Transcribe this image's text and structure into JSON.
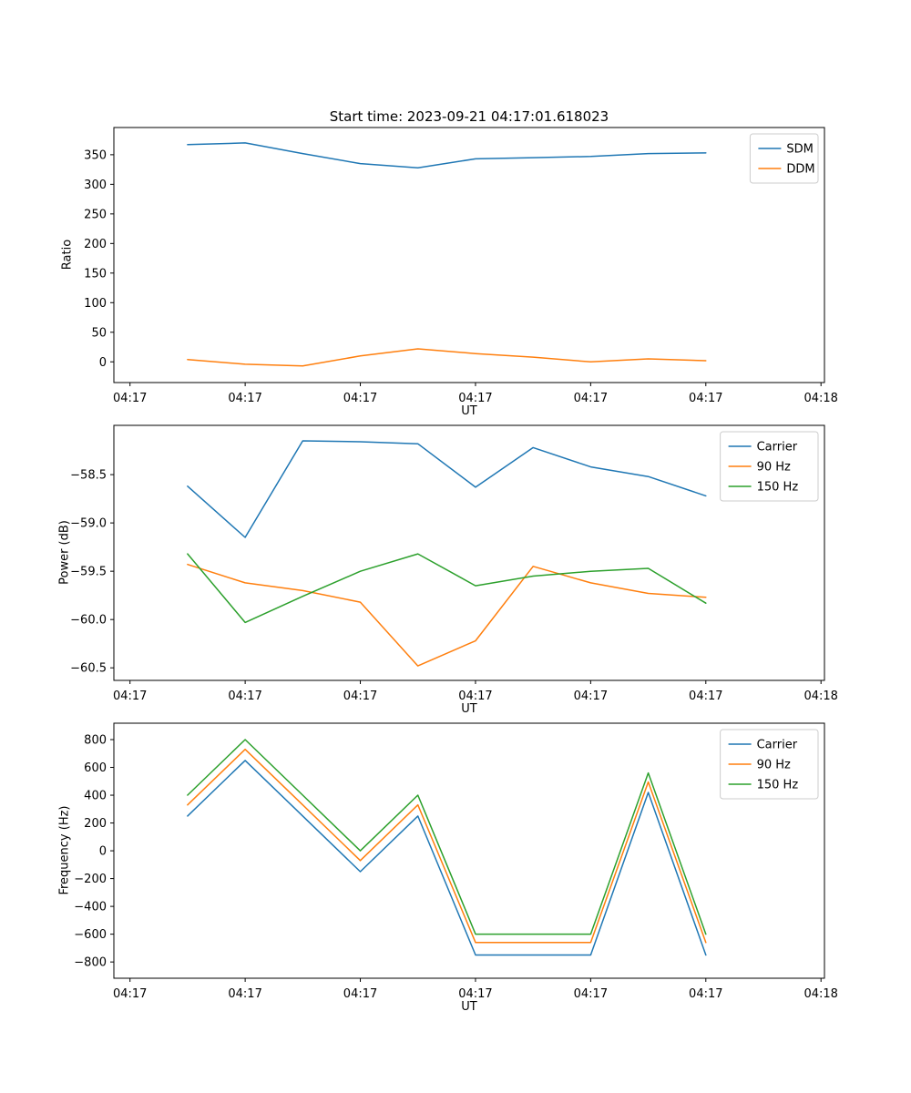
{
  "figure": {
    "title": "Start time: 2023-09-21 04:17:01.618023",
    "background": "#ffffff"
  },
  "chart_data": [
    {
      "id": "ratio",
      "type": "line",
      "title": "Start time: 2023-09-21 04:17:01.618023",
      "xlabel": "UT",
      "ylabel": "Ratio",
      "xlim": [
        -1.4,
        60.3
      ],
      "ylim": [
        -35,
        396
      ],
      "grid": false,
      "legend_position": "upper right",
      "x": [
        5,
        10,
        15,
        20,
        25,
        30,
        35,
        40,
        45,
        50
      ],
      "xticks": {
        "pos": [
          0,
          10,
          20,
          30,
          40,
          50,
          60
        ],
        "labels": [
          "04:17",
          "04:17",
          "04:17",
          "04:17",
          "04:17",
          "04:17",
          "04:18"
        ]
      },
      "yticks": {
        "pos": [
          0,
          50,
          100,
          150,
          200,
          250,
          300,
          350
        ],
        "labels": [
          "0",
          "50",
          "100",
          "150",
          "200",
          "250",
          "300",
          "350"
        ]
      },
      "series": [
        {
          "name": "SDM",
          "color": "#1f77b4",
          "values": [
            367,
            370,
            352,
            335,
            328,
            343,
            345,
            347,
            352,
            353
          ]
        },
        {
          "name": "DDM",
          "color": "#ff7f0e",
          "values": [
            4,
            -4,
            -7,
            10,
            22,
            14,
            8,
            0,
            5,
            2
          ]
        }
      ]
    },
    {
      "id": "power",
      "type": "line",
      "title": "",
      "xlabel": "UT",
      "ylabel": "Power (dB)",
      "xlim": [
        -1.4,
        60.3
      ],
      "ylim": [
        -60.63,
        -57.99
      ],
      "grid": false,
      "legend_position": "upper right",
      "x": [
        5,
        10,
        15,
        20,
        25,
        30,
        35,
        40,
        45,
        50
      ],
      "xticks": {
        "pos": [
          0,
          10,
          20,
          30,
          40,
          50,
          60
        ],
        "labels": [
          "04:17",
          "04:17",
          "04:17",
          "04:17",
          "04:17",
          "04:17",
          "04:18"
        ]
      },
      "yticks": {
        "pos": [
          -58.5,
          -59.0,
          -59.5,
          -60.0,
          -60.5
        ],
        "labels": [
          "−58.5",
          "−59.0",
          "−59.5",
          "−60.0",
          "−60.5"
        ]
      },
      "series": [
        {
          "name": "Carrier",
          "color": "#1f77b4",
          "values": [
            -58.62,
            -59.15,
            -58.15,
            -58.16,
            -58.18,
            -58.63,
            -58.22,
            -58.42,
            -58.52,
            -58.72
          ]
        },
        {
          "name": "90 Hz",
          "color": "#ff7f0e",
          "values": [
            -59.43,
            -59.62,
            -59.7,
            -59.82,
            -60.48,
            -60.22,
            -59.45,
            -59.62,
            -59.73,
            -59.77
          ]
        },
        {
          "name": "150 Hz",
          "color": "#2ca02c",
          "values": [
            -59.32,
            -60.03,
            -59.76,
            -59.5,
            -59.32,
            -59.65,
            -59.55,
            -59.5,
            -59.47,
            -59.83
          ]
        }
      ]
    },
    {
      "id": "frequency",
      "type": "line",
      "title": "",
      "xlabel": "UT",
      "ylabel": "Frequency (Hz)",
      "xlim": [
        -1.4,
        60.3
      ],
      "ylim": [
        -917,
        918
      ],
      "grid": false,
      "legend_position": "upper right",
      "x": [
        5,
        10,
        15,
        20,
        25,
        30,
        35,
        40,
        45,
        50
      ],
      "xticks": {
        "pos": [
          0,
          10,
          20,
          30,
          40,
          50,
          60
        ],
        "labels": [
          "04:17",
          "04:17",
          "04:17",
          "04:17",
          "04:17",
          "04:17",
          "04:18"
        ]
      },
      "yticks": {
        "pos": [
          -800,
          -600,
          -400,
          -200,
          0,
          200,
          400,
          600,
          800
        ],
        "labels": [
          "−800",
          "−600",
          "−400",
          "−200",
          "0",
          "200",
          "400",
          "600",
          "800"
        ]
      },
      "series": [
        {
          "name": "Carrier",
          "color": "#1f77b4",
          "values": [
            250,
            650,
            250,
            -150,
            250,
            -750,
            -750,
            -750,
            420,
            -750
          ]
        },
        {
          "name": "90 Hz",
          "color": "#ff7f0e",
          "values": [
            330,
            730,
            330,
            -70,
            330,
            -660,
            -660,
            -660,
            495,
            -660
          ]
        },
        {
          "name": "150 Hz",
          "color": "#2ca02c",
          "values": [
            400,
            800,
            400,
            0,
            400,
            -600,
            -600,
            -600,
            560,
            -600
          ]
        }
      ]
    }
  ]
}
